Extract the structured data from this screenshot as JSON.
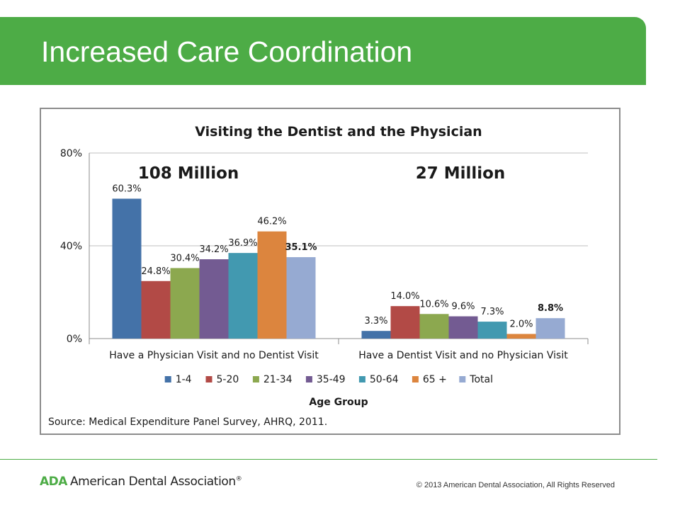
{
  "slide": {
    "title": "Increased Care Coordination"
  },
  "chart_data": {
    "type": "bar",
    "title": "Visiting the Dentist and the Physician",
    "categories": [
      "Have a Physician Visit and no Dentist Visit",
      "Have a Dentist Visit and no Physician Visit"
    ],
    "category_totals": [
      "108 Million",
      "27 Million"
    ],
    "series": [
      {
        "name": "1-4",
        "values": [
          60.3,
          3.3
        ],
        "labels": [
          "60.3%",
          "3.3%"
        ],
        "color": "#4472a8"
      },
      {
        "name": "5-20",
        "values": [
          24.8,
          14.0
        ],
        "labels": [
          "24.8%",
          "14.0%"
        ],
        "color": "#b24a46"
      },
      {
        "name": "21-34",
        "values": [
          30.4,
          10.6
        ],
        "labels": [
          "30.4%",
          "10.6%"
        ],
        "color": "#8ca84f"
      },
      {
        "name": "35-49",
        "values": [
          34.2,
          9.6
        ],
        "labels": [
          "34.2%",
          "9.6%"
        ],
        "color": "#735b92"
      },
      {
        "name": "50-64",
        "values": [
          36.9,
          7.3
        ],
        "labels": [
          "36.9%",
          "7.3%"
        ],
        "color": "#4299b0"
      },
      {
        "name": "65 +",
        "values": [
          46.2,
          2.0
        ],
        "labels": [
          "46.2%",
          "2.0%"
        ],
        "color": "#dc853e"
      },
      {
        "name": "Total",
        "values": [
          35.1,
          8.8
        ],
        "labels": [
          "35.1%",
          "8.8%"
        ],
        "color": "#96aad2",
        "bold_labels": true
      }
    ],
    "yticks": [
      "0%",
      "40%",
      "80%"
    ],
    "ytick_values": [
      0,
      40,
      80
    ],
    "ylim": [
      0,
      80
    ],
    "grid": true,
    "legend_position": "bottom",
    "legend_title": "Age Group",
    "source": "Source: Medical Expenditure Panel Survey, AHRQ, 2011."
  },
  "footer": {
    "logo_abbr": "ADA",
    "logo_name": "American Dental Association",
    "logo_reg": "®",
    "copyright": "© 2013 American Dental Association,  All Rights Reserved"
  }
}
